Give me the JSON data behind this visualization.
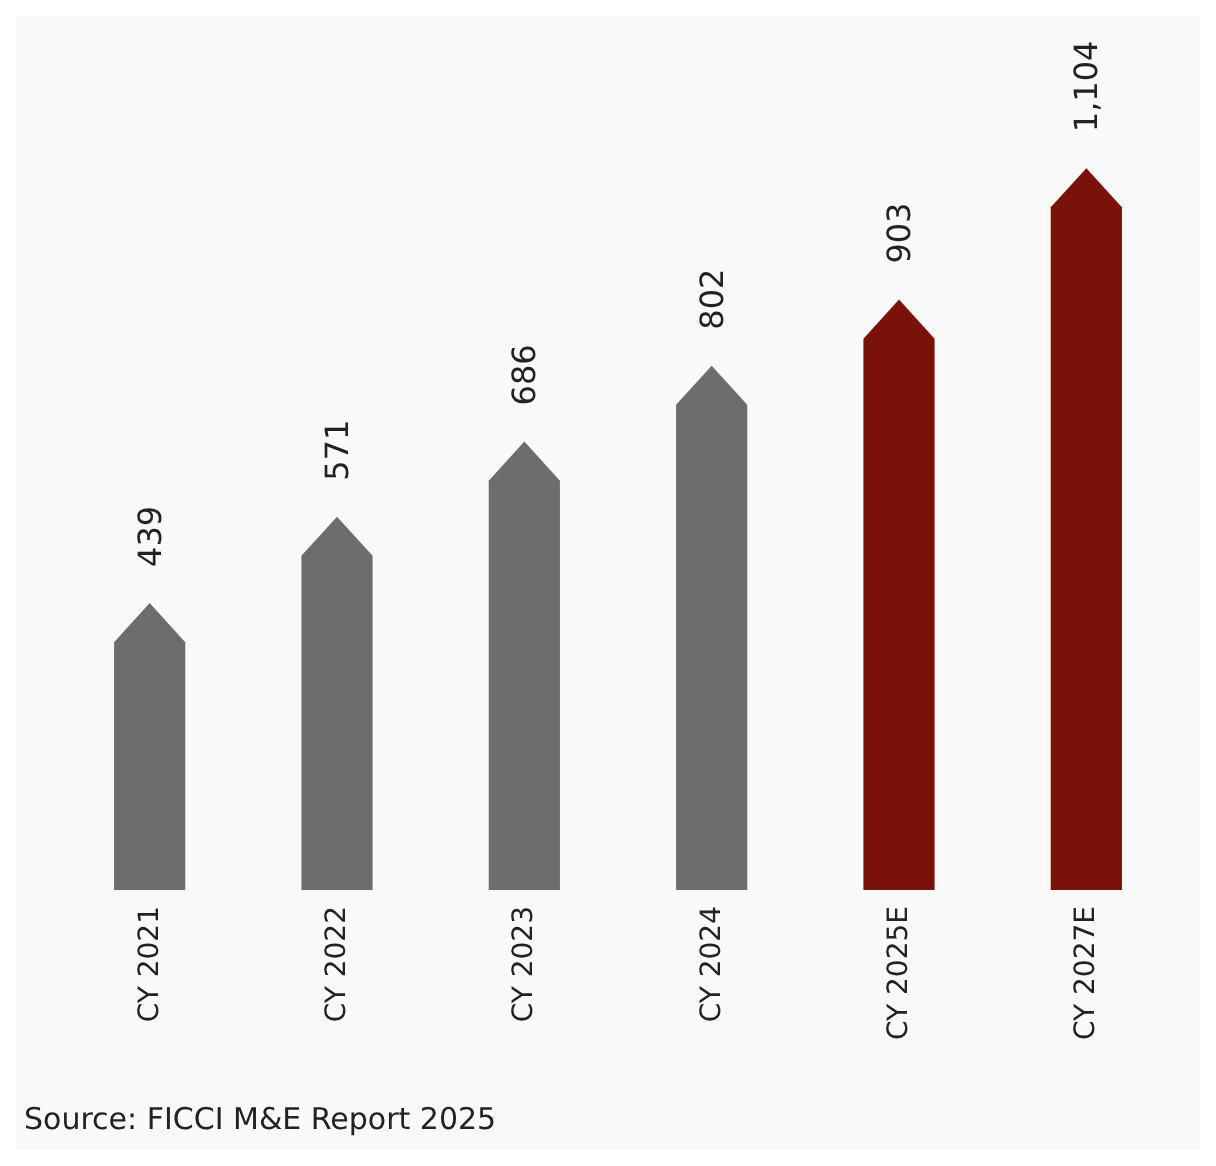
{
  "chart_data": {
    "type": "bar",
    "categories": [
      "CY 2021",
      "CY 2022",
      "CY 2023",
      "CY 2024",
      "CY 2025E",
      "CY 2027E"
    ],
    "values": [
      439,
      571,
      686,
      802,
      903,
      1104
    ],
    "colors": [
      "#6d6d6d",
      "#6d6d6d",
      "#6d6d6d",
      "#6d6d6d",
      "#7a1208",
      "#7a1208"
    ],
    "value_labels": [
      "439",
      "571",
      "686",
      "802",
      "903",
      "1,104"
    ],
    "annotations": [
      "Source: FICCI M&E Report 2025"
    ]
  }
}
